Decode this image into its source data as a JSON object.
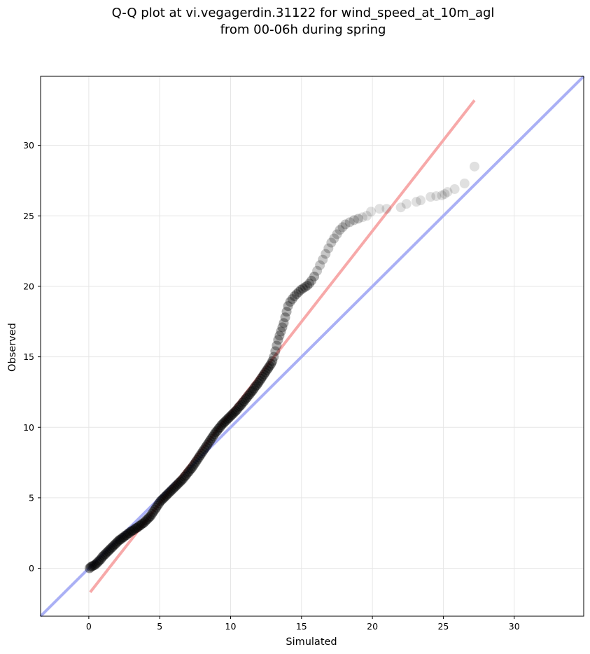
{
  "chart_data": {
    "type": "scatter",
    "title_lines": [
      "Q-Q plot at vi.vegagerdin.31122 for wind_speed_at_10m_agl",
      "from 00-06h during spring"
    ],
    "xlabel": "Simulated",
    "ylabel": "Observed",
    "xlim": [
      -3.4,
      34.9
    ],
    "ylim": [
      -3.4,
      34.9
    ],
    "xticks": [
      0,
      5,
      10,
      15,
      20,
      25,
      30
    ],
    "yticks": [
      0,
      5,
      10,
      15,
      20,
      25,
      30
    ],
    "grid": true,
    "reference_lines": [
      {
        "kind": "identity",
        "color": "#aab0f5",
        "from": [
          -3.4,
          -3.4
        ],
        "to": [
          34.9,
          34.9
        ]
      },
      {
        "kind": "fit",
        "color": "#f7a9a9",
        "from": [
          0.1,
          -1.7
        ],
        "to": [
          27.2,
          33.2
        ]
      }
    ],
    "series": [
      {
        "color": "#000000",
        "points": [
          [
            0.05,
            0.0
          ],
          [
            0.15,
            0.1
          ],
          [
            0.25,
            0.15
          ],
          [
            0.35,
            0.2
          ],
          [
            0.45,
            0.25
          ],
          [
            0.55,
            0.35
          ],
          [
            0.65,
            0.45
          ],
          [
            0.75,
            0.55
          ],
          [
            0.85,
            0.65
          ],
          [
            0.95,
            0.8
          ],
          [
            1.05,
            0.9
          ],
          [
            1.15,
            1.0
          ],
          [
            1.25,
            1.1
          ],
          [
            1.35,
            1.2
          ],
          [
            1.45,
            1.3
          ],
          [
            1.55,
            1.4
          ],
          [
            1.65,
            1.5
          ],
          [
            1.75,
            1.6
          ],
          [
            1.85,
            1.7
          ],
          [
            1.95,
            1.8
          ],
          [
            2.05,
            1.9
          ],
          [
            2.15,
            2.0
          ],
          [
            2.25,
            2.05
          ],
          [
            2.35,
            2.15
          ],
          [
            2.45,
            2.2
          ],
          [
            2.55,
            2.3
          ],
          [
            2.65,
            2.35
          ],
          [
            2.75,
            2.45
          ],
          [
            2.85,
            2.5
          ],
          [
            2.95,
            2.6
          ],
          [
            3.05,
            2.65
          ],
          [
            3.15,
            2.7
          ],
          [
            3.25,
            2.8
          ],
          [
            3.35,
            2.85
          ],
          [
            3.45,
            2.9
          ],
          [
            3.55,
            3.0
          ],
          [
            3.65,
            3.05
          ],
          [
            3.75,
            3.15
          ],
          [
            3.85,
            3.2
          ],
          [
            3.95,
            3.3
          ],
          [
            4.05,
            3.4
          ],
          [
            4.15,
            3.5
          ],
          [
            4.25,
            3.6
          ],
          [
            4.35,
            3.7
          ],
          [
            4.45,
            3.85
          ],
          [
            4.55,
            4.0
          ],
          [
            4.65,
            4.15
          ],
          [
            4.75,
            4.3
          ],
          [
            4.85,
            4.45
          ],
          [
            4.95,
            4.6
          ],
          [
            5.05,
            4.75
          ],
          [
            5.15,
            4.85
          ],
          [
            5.25,
            4.95
          ],
          [
            5.35,
            5.05
          ],
          [
            5.45,
            5.15
          ],
          [
            5.55,
            5.25
          ],
          [
            5.65,
            5.35
          ],
          [
            5.75,
            5.45
          ],
          [
            5.85,
            5.55
          ],
          [
            5.95,
            5.65
          ],
          [
            6.05,
            5.75
          ],
          [
            6.15,
            5.85
          ],
          [
            6.25,
            5.95
          ],
          [
            6.35,
            6.05
          ],
          [
            6.45,
            6.15
          ],
          [
            6.55,
            6.25
          ],
          [
            6.65,
            6.35
          ],
          [
            6.75,
            6.5
          ],
          [
            6.85,
            6.6
          ],
          [
            6.95,
            6.75
          ],
          [
            7.05,
            6.85
          ],
          [
            7.15,
            7.0
          ],
          [
            7.25,
            7.1
          ],
          [
            7.35,
            7.25
          ],
          [
            7.45,
            7.4
          ],
          [
            7.55,
            7.55
          ],
          [
            7.65,
            7.7
          ],
          [
            7.75,
            7.85
          ],
          [
            7.85,
            8.0
          ],
          [
            7.95,
            8.15
          ],
          [
            8.05,
            8.3
          ],
          [
            8.15,
            8.45
          ],
          [
            8.25,
            8.6
          ],
          [
            8.35,
            8.75
          ],
          [
            8.45,
            8.9
          ],
          [
            8.55,
            9.05
          ],
          [
            8.65,
            9.2
          ],
          [
            8.75,
            9.35
          ],
          [
            8.85,
            9.5
          ],
          [
            8.95,
            9.65
          ],
          [
            9.05,
            9.75
          ],
          [
            9.15,
            9.9
          ],
          [
            9.25,
            10.0
          ],
          [
            9.35,
            10.15
          ],
          [
            9.45,
            10.25
          ],
          [
            9.55,
            10.35
          ],
          [
            9.65,
            10.45
          ],
          [
            9.75,
            10.55
          ],
          [
            9.85,
            10.65
          ],
          [
            9.95,
            10.75
          ],
          [
            10.05,
            10.85
          ],
          [
            10.15,
            10.95
          ],
          [
            10.25,
            11.05
          ],
          [
            10.35,
            11.15
          ],
          [
            10.45,
            11.25
          ],
          [
            10.55,
            11.4
          ],
          [
            10.65,
            11.5
          ],
          [
            10.75,
            11.6
          ],
          [
            10.85,
            11.75
          ],
          [
            10.95,
            11.85
          ],
          [
            11.05,
            12.0
          ],
          [
            11.15,
            12.1
          ],
          [
            11.25,
            12.25
          ],
          [
            11.35,
            12.35
          ],
          [
            11.45,
            12.5
          ],
          [
            11.55,
            12.6
          ],
          [
            11.65,
            12.75
          ],
          [
            11.75,
            12.9
          ],
          [
            11.85,
            13.0
          ],
          [
            11.95,
            13.15
          ],
          [
            12.05,
            13.3
          ],
          [
            12.15,
            13.45
          ],
          [
            12.25,
            13.6
          ],
          [
            12.35,
            13.75
          ],
          [
            12.45,
            13.9
          ],
          [
            12.55,
            14.05
          ],
          [
            12.65,
            14.2
          ],
          [
            12.75,
            14.35
          ],
          [
            12.85,
            14.5
          ],
          [
            12.95,
            14.7
          ],
          [
            13.05,
            15.0
          ],
          [
            13.15,
            15.4
          ],
          [
            13.25,
            15.8
          ],
          [
            13.35,
            16.2
          ],
          [
            13.45,
            16.5
          ],
          [
            13.55,
            16.8
          ],
          [
            13.65,
            17.1
          ],
          [
            13.75,
            17.4
          ],
          [
            13.85,
            17.8
          ],
          [
            13.95,
            18.2
          ],
          [
            14.05,
            18.6
          ],
          [
            14.2,
            18.9
          ],
          [
            14.35,
            19.1
          ],
          [
            14.5,
            19.3
          ],
          [
            14.65,
            19.45
          ],
          [
            14.8,
            19.6
          ],
          [
            14.95,
            19.75
          ],
          [
            15.1,
            19.85
          ],
          [
            15.25,
            19.95
          ],
          [
            15.4,
            20.05
          ],
          [
            15.55,
            20.2
          ],
          [
            15.7,
            20.4
          ],
          [
            15.9,
            20.7
          ],
          [
            16.1,
            21.1
          ],
          [
            16.3,
            21.5
          ],
          [
            16.5,
            21.9
          ],
          [
            16.7,
            22.3
          ],
          [
            16.9,
            22.7
          ],
          [
            17.1,
            23.1
          ],
          [
            17.3,
            23.4
          ],
          [
            17.5,
            23.7
          ],
          [
            17.7,
            24.0
          ],
          [
            17.9,
            24.2
          ],
          [
            18.1,
            24.4
          ],
          [
            18.4,
            24.55
          ],
          [
            18.7,
            24.7
          ],
          [
            19.0,
            24.8
          ],
          [
            19.3,
            24.9
          ],
          [
            19.6,
            25.0
          ],
          [
            19.9,
            25.3
          ],
          [
            20.5,
            25.5
          ],
          [
            21.0,
            25.5
          ],
          [
            22.0,
            25.6
          ],
          [
            22.4,
            25.85
          ],
          [
            23.1,
            26.0
          ],
          [
            23.4,
            26.1
          ],
          [
            24.1,
            26.35
          ],
          [
            24.5,
            26.4
          ],
          [
            24.9,
            26.45
          ],
          [
            25.1,
            26.55
          ],
          [
            25.3,
            26.7
          ],
          [
            25.8,
            26.9
          ],
          [
            26.5,
            27.3
          ],
          [
            27.2,
            28.5
          ]
        ]
      }
    ]
  }
}
